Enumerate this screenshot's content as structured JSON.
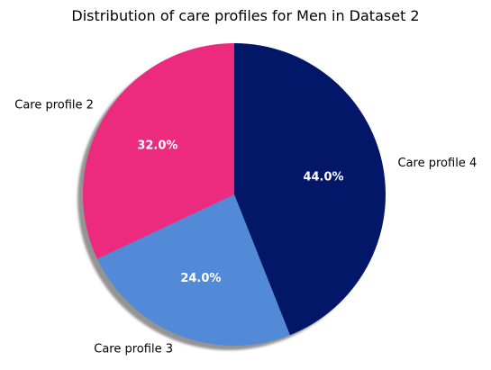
{
  "chart_data": {
    "type": "pie",
    "title": "Distribution of care profiles for Men in Dataset 2",
    "slices": [
      {
        "label": "Care profile 4",
        "value": 44.0,
        "pct_label": "44.0%",
        "color": "#031769"
      },
      {
        "label": "Care profile 3",
        "value": 24.0,
        "pct_label": "24.0%",
        "color": "#528AD8"
      },
      {
        "label": "Care profile 2",
        "value": 32.0,
        "pct_label": "32.0%",
        "color": "#EC2A7E"
      }
    ],
    "start_angle_deg": 90,
    "direction": "clockwise",
    "shadow": true,
    "pct_label_color": "#ffffff",
    "legend": "none"
  }
}
